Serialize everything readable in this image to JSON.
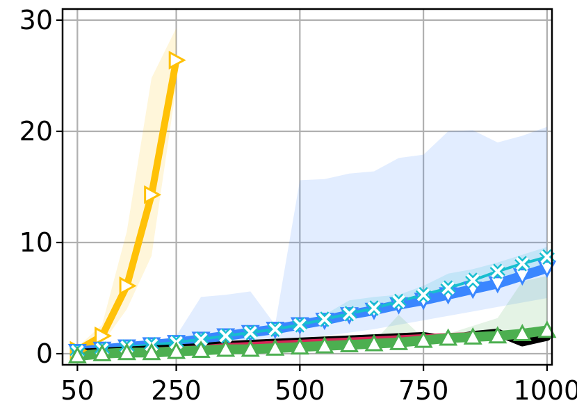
{
  "chart_data": {
    "type": "line",
    "title": "",
    "xlabel": "",
    "ylabel": "",
    "xlim": [
      20,
      1010
    ],
    "ylim": [
      -1,
      31
    ],
    "xticks": [
      50,
      250,
      500,
      750,
      1000
    ],
    "yticks": [
      0,
      10,
      20,
      30
    ],
    "grid": true,
    "series": [
      {
        "color": "#ffc107",
        "marker": "triangle-right",
        "line_width": 10,
        "x": [
          50,
          100,
          150,
          200,
          250
        ],
        "y": [
          0.3,
          1.6,
          6.1,
          14.3,
          26.4
        ],
        "band_low": [
          0.1,
          0.9,
          4.0,
          8.8,
          24.0
        ],
        "band_high": [
          0.6,
          2.6,
          11.0,
          24.8,
          29.3
        ]
      },
      {
        "color": "#3a86ff",
        "marker": "triangle-down",
        "line_width": 14,
        "x": [
          50,
          100,
          150,
          200,
          250,
          300,
          350,
          400,
          450,
          500,
          550,
          600,
          650,
          700,
          750,
          800,
          850,
          900,
          950,
          1000
        ],
        "y": [
          0.2,
          0.4,
          0.6,
          0.8,
          1.0,
          1.3,
          1.6,
          1.9,
          2.2,
          2.6,
          3.0,
          3.5,
          3.9,
          4.4,
          4.8,
          5.3,
          5.8,
          6.3,
          7.0,
          7.7
        ],
        "band_low": [
          0.1,
          0.2,
          0.3,
          0.4,
          0.5,
          0.6,
          0.8,
          1.0,
          1.2,
          1.4,
          1.6,
          1.9,
          2.2,
          2.6,
          3.0,
          3.4,
          3.8,
          4.2,
          4.6,
          5.0
        ],
        "band_high": [
          0.4,
          0.6,
          0.8,
          1.1,
          1.6,
          5.1,
          5.3,
          5.6,
          2.6,
          15.6,
          15.7,
          16.2,
          16.4,
          17.6,
          17.9,
          20.0,
          20.1,
          19.0,
          19.6,
          20.4
        ]
      },
      {
        "color": "#17becf",
        "marker": "x",
        "line_width": 4,
        "x": [
          50,
          100,
          150,
          200,
          250,
          300,
          350,
          400,
          450,
          500,
          550,
          600,
          650,
          700,
          750,
          800,
          850,
          900,
          950,
          1000
        ],
        "y": [
          0.2,
          0.4,
          0.6,
          0.8,
          1.0,
          1.3,
          1.6,
          1.9,
          2.2,
          2.6,
          3.1,
          3.6,
          4.1,
          4.7,
          5.3,
          5.9,
          6.6,
          7.4,
          8.1,
          8.7
        ],
        "band_low": [
          0.1,
          0.3,
          0.5,
          0.7,
          0.9,
          1.1,
          1.4,
          1.7,
          2.0,
          2.3,
          2.7,
          3.2,
          3.7,
          4.2,
          4.8,
          5.4,
          6.0,
          6.7,
          7.4,
          8.0
        ],
        "band_high": [
          0.3,
          0.5,
          0.7,
          0.9,
          1.1,
          1.5,
          1.8,
          2.1,
          2.5,
          2.9,
          3.5,
          4.8,
          5.1,
          5.3,
          6.1,
          7.2,
          7.6,
          8.2,
          8.9,
          9.6
        ]
      },
      {
        "color": "#000000",
        "marker": "none",
        "line_width": 11,
        "x": [
          50,
          100,
          150,
          200,
          250,
          300,
          350,
          400,
          450,
          500,
          550,
          600,
          650,
          700,
          750,
          800,
          850,
          900,
          950,
          1000
        ],
        "y": [
          0.1,
          0.2,
          0.3,
          0.4,
          0.5,
          0.6,
          0.8,
          0.9,
          1.0,
          1.1,
          1.2,
          1.3,
          1.4,
          1.5,
          1.6,
          1.3,
          1.7,
          1.9,
          1.0,
          1.5
        ],
        "band_low": [
          0.0,
          0.1,
          0.2,
          0.3,
          0.4,
          0.5,
          0.6,
          0.7,
          0.8,
          0.9,
          1.0,
          1.1,
          1.2,
          1.3,
          1.4,
          1.1,
          1.4,
          1.6,
          0.7,
          1.2
        ],
        "band_high": [
          0.2,
          0.3,
          0.4,
          0.5,
          0.6,
          0.7,
          0.9,
          1.0,
          1.1,
          1.2,
          1.4,
          1.5,
          1.6,
          1.7,
          1.9,
          1.6,
          2.0,
          2.3,
          1.3,
          1.8
        ]
      },
      {
        "color": "#d62757",
        "marker": "none",
        "line_width": 5,
        "x": [
          50,
          100,
          150,
          200,
          250,
          300,
          350,
          400,
          450,
          500,
          550,
          600,
          650,
          700,
          750,
          800,
          850,
          900,
          950,
          1000
        ],
        "y": [
          0.1,
          0.2,
          0.3,
          0.4,
          0.5,
          0.6,
          0.8,
          0.9,
          1.0,
          1.1,
          1.2,
          1.3,
          1.4,
          1.5,
          1.6,
          1.7,
          1.8,
          1.8,
          1.9,
          1.9
        ],
        "band_low": [
          0.05,
          0.15,
          0.25,
          0.35,
          0.45,
          0.55,
          0.7,
          0.8,
          0.9,
          1.0,
          1.1,
          1.2,
          1.3,
          1.4,
          1.5,
          1.6,
          1.7,
          1.7,
          1.8,
          1.8
        ],
        "band_high": [
          0.15,
          0.25,
          0.35,
          0.45,
          0.55,
          0.65,
          0.9,
          1.0,
          1.1,
          1.2,
          1.3,
          1.4,
          1.5,
          1.6,
          1.7,
          1.8,
          1.9,
          1.9,
          2.0,
          2.0
        ]
      },
      {
        "color": "#4caf50",
        "marker": "triangle-up",
        "line_width": 14,
        "x": [
          50,
          100,
          150,
          200,
          250,
          300,
          350,
          400,
          450,
          500,
          550,
          600,
          650,
          700,
          750,
          800,
          850,
          900,
          950,
          1000
        ],
        "y": [
          -0.2,
          0.0,
          0.1,
          0.1,
          0.2,
          0.3,
          0.4,
          0.4,
          0.5,
          0.6,
          0.7,
          0.8,
          0.9,
          1.0,
          1.2,
          1.4,
          1.5,
          1.6,
          1.8,
          2.1
        ],
        "band_low": [
          -0.3,
          -0.1,
          0.0,
          0.0,
          0.1,
          0.2,
          0.3,
          0.3,
          0.4,
          0.5,
          0.6,
          0.7,
          0.8,
          0.9,
          1.0,
          1.2,
          1.3,
          1.4,
          1.6,
          1.8
        ],
        "band_high": [
          0.0,
          0.1,
          0.2,
          0.3,
          0.4,
          0.5,
          0.6,
          0.6,
          0.7,
          0.8,
          0.9,
          1.0,
          1.1,
          3.5,
          1.4,
          1.8,
          2.5,
          3.2,
          6.5,
          7.0
        ]
      }
    ]
  }
}
